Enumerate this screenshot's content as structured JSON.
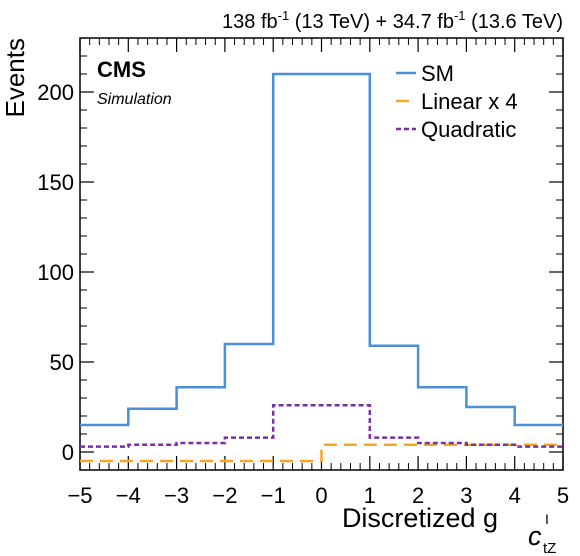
{
  "chart_data": {
    "type": "line",
    "style": "step-histogram",
    "header": {
      "lumi_run2_value": "138 fb",
      "lumi_run2_sup": "-1",
      "lumi_run2_energy": " (13 TeV) + ",
      "lumi_run3_value": "34.7 fb",
      "lumi_run3_sup": "-1",
      "lumi_run3_energy": " (13.6 TeV)"
    },
    "experiment": "CMS",
    "subtitle": "Simulation",
    "xlabel_main": "Discretized g",
    "xlabel_sub": "c",
    "xlabel_subsub": "tZ",
    "xlabel_sup": "I",
    "ylabel": "Events",
    "xlim": [
      -5,
      5
    ],
    "ylim": [
      -10,
      230
    ],
    "bin_edges": [
      -5,
      -4,
      -3,
      -2,
      -1,
      0,
      1,
      2,
      3,
      4,
      5
    ],
    "xticks": [
      "−5",
      "−4",
      "−3",
      "−2",
      "−1",
      "0",
      "1",
      "2",
      "3",
      "4",
      "5"
    ],
    "xtick_values": [
      -5,
      -4,
      -3,
      -2,
      -1,
      0,
      1,
      2,
      3,
      4,
      5
    ],
    "yticks": [
      "0",
      "50",
      "100",
      "150",
      "200"
    ],
    "ytick_values": [
      0,
      50,
      100,
      150,
      200
    ],
    "legend_position": "top-right",
    "series": [
      {
        "name": "SM",
        "color": "#4a90d9",
        "dash": "solid",
        "values": [
          15,
          24,
          36,
          60,
          210,
          210,
          59,
          36,
          25,
          15
        ]
      },
      {
        "name": "Linear x 4",
        "color": "#f5a623",
        "dash": "dashed",
        "values": [
          -5,
          -5,
          -5,
          -5,
          -5,
          4,
          4,
          4,
          4,
          4
        ]
      },
      {
        "name": "Quadratic",
        "color": "#7b2fa8",
        "dash": "dotted",
        "values": [
          3,
          4,
          5,
          8,
          26,
          26,
          8,
          5,
          4,
          3
        ]
      }
    ]
  }
}
